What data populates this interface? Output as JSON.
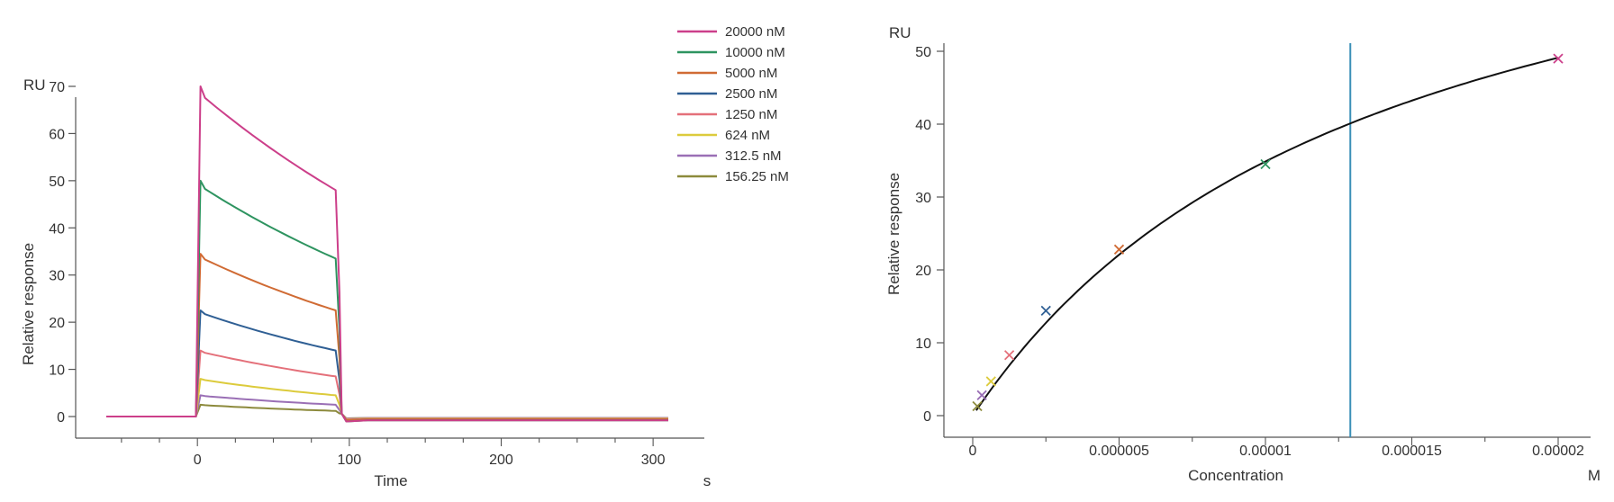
{
  "chart_data": [
    {
      "type": "line",
      "ylabel": "Relative response",
      "yunit": "RU",
      "xlabel": "Time",
      "xunit": "s",
      "xlim": [
        -60,
        310
      ],
      "ylim": [
        -4,
        74
      ],
      "x_ticks": [
        0,
        100,
        200,
        300
      ],
      "y_ticks": [
        0,
        10,
        20,
        30,
        40,
        50,
        60,
        70
      ],
      "grid": false,
      "legend": "top-right",
      "association_start": 0,
      "dissociation_start": 92,
      "series": [
        {
          "name": "20000 nM",
          "color": "#cc3f8a",
          "peak": 70.0,
          "assoc_end": 48.0,
          "baseline_end": -0.8
        },
        {
          "name": "10000 nM",
          "color": "#2e9460",
          "peak": 50.0,
          "assoc_end": 33.5,
          "baseline_end": -0.8
        },
        {
          "name": "5000 nM",
          "color": "#d06b34",
          "peak": 34.5,
          "assoc_end": 22.5,
          "baseline_end": -0.6
        },
        {
          "name": "2500 nM",
          "color": "#2f5f94",
          "peak": 22.5,
          "assoc_end": 14.0,
          "baseline_end": -0.6
        },
        {
          "name": "1250 nM",
          "color": "#e4707a",
          "peak": 14.0,
          "assoc_end": 8.5,
          "baseline_end": -0.5
        },
        {
          "name": "624 nM",
          "color": "#dccb3c",
          "peak": 8.0,
          "assoc_end": 4.5,
          "baseline_end": -0.4
        },
        {
          "name": "312.5 nM",
          "color": "#9a6fb5",
          "peak": 4.5,
          "assoc_end": 2.5,
          "baseline_end": -0.3
        },
        {
          "name": "156.25 nM",
          "color": "#8c8a3c",
          "peak": 2.5,
          "assoc_end": 1.2,
          "baseline_end": -0.3
        }
      ]
    },
    {
      "type": "scatter",
      "ylabel": "Relative response",
      "yunit": "RU",
      "xlabel": "Concentration",
      "xunit": "M",
      "xlim": [
        -5e-07,
        2.05e-05
      ],
      "ylim": [
        -1,
        51.5
      ],
      "x_ticks": [
        0,
        5e-06,
        1e-05,
        1.5e-05,
        2e-05
      ],
      "x_tick_labels": [
        "0",
        "0.000005",
        "0.00001",
        "0.000015",
        "0.00002"
      ],
      "y_ticks": [
        0,
        10,
        20,
        30,
        40,
        50
      ],
      "grid": false,
      "fit": {
        "rmax": 83.0,
        "kd": 1.38e-05,
        "color": "#111111"
      },
      "vertical_line": {
        "x": 1.29e-05,
        "color": "#3a8fb7"
      },
      "points": [
        {
          "x": 1.5625e-07,
          "y": 1.3,
          "color": "#8c8a3c"
        },
        {
          "x": 3.125e-07,
          "y": 2.8,
          "color": "#9a6fb5"
        },
        {
          "x": 6.24e-07,
          "y": 4.7,
          "color": "#dccb3c"
        },
        {
          "x": 1.25e-06,
          "y": 8.3,
          "color": "#e4707a"
        },
        {
          "x": 2.5e-06,
          "y": 14.4,
          "color": "#2f5f94"
        },
        {
          "x": 5e-06,
          "y": 22.8,
          "color": "#d06b34"
        },
        {
          "x": 1e-05,
          "y": 34.5,
          "color": "#2e9460"
        },
        {
          "x": 2e-05,
          "y": 49.0,
          "color": "#cc3f8a"
        }
      ]
    }
  ]
}
